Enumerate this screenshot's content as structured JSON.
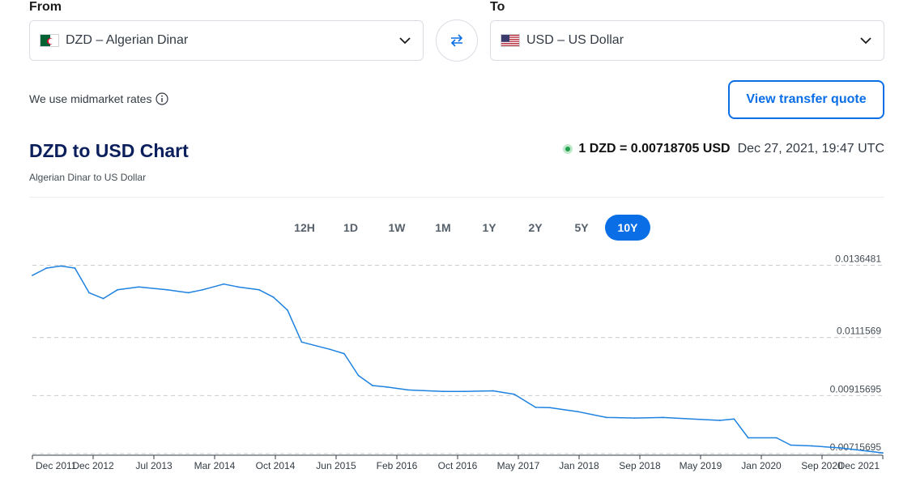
{
  "from": {
    "label": "From",
    "value": "DZD – Algerian Dinar",
    "flag_icon": "algeria-flag-icon"
  },
  "to": {
    "label": "To",
    "value": "USD – US Dollar",
    "flag_icon": "us-flag-icon"
  },
  "swap_icon": "swap-arrows-icon",
  "midmarket_text": "We use midmarket rates",
  "quote_button": "View transfer quote",
  "chart_header": {
    "title": "DZD to USD Chart",
    "subtitle": "Algerian Dinar to US Dollar",
    "rate": "1 DZD = 0.00718705 USD",
    "timestamp": "Dec 27, 2021, 19:47 UTC"
  },
  "ranges": [
    "12H",
    "1D",
    "1W",
    "1M",
    "1Y",
    "2Y",
    "5Y",
    "10Y"
  ],
  "active_range": "10Y",
  "colors": {
    "accent": "#0a6ee6",
    "line": "#1e82e0",
    "title": "#0b1f5c",
    "live": "#21a04b"
  },
  "chart_data": {
    "type": "line",
    "title": "",
    "xlabel": "",
    "ylabel": "",
    "x_ticks": [
      "Dec 2011",
      "Dec 2012",
      "Jul 2013",
      "Mar 2014",
      "Oct 2014",
      "Jun 2015",
      "Feb 2016",
      "Oct 2016",
      "May 2017",
      "Jan 2018",
      "Sep 2018",
      "May 2019",
      "Jan 2020",
      "Sep 2020",
      "Dec 2021"
    ],
    "y_ticks": [
      "0.0136481",
      "0.0111569",
      "0.00915695",
      "0.00715695"
    ],
    "ylim": [
      0.0071,
      0.0138
    ],
    "grid": true,
    "series": [
      {
        "x": [
          "Dec 2011",
          "Feb 2012",
          "Apr 2012",
          "Jun 2012",
          "Aug 2012",
          "Oct 2012",
          "Dec 2012",
          "Mar 2013",
          "Jul 2013",
          "Oct 2013",
          "Dec 2013",
          "Mar 2014",
          "May 2014",
          "Aug 2014",
          "Oct 2014",
          "Dec 2014",
          "Feb 2015",
          "Jun 2015",
          "Aug 2015",
          "Oct 2015",
          "Dec 2015",
          "Feb 2016",
          "May 2016",
          "Oct 2016",
          "Jan 2017",
          "May 2017",
          "Aug 2017",
          "Nov 2017",
          "Jan 2018",
          "May 2018",
          "Sep 2018",
          "Jan 2019",
          "May 2019",
          "Sep 2019",
          "Jan 2020",
          "Mar 2020",
          "May 2020",
          "Sep 2020",
          "Nov 2020",
          "Feb 2021",
          "Jun 2021",
          "Dec 2021"
        ],
        "values": [
          0.0133,
          0.01355,
          0.01362,
          0.01355,
          0.0127,
          0.0125,
          0.0128,
          0.0129,
          0.0128,
          0.0127,
          0.0128,
          0.013,
          0.0129,
          0.0128,
          0.01255,
          0.0121,
          0.011,
          0.01075,
          0.0106,
          0.00985,
          0.0095,
          0.00945,
          0.00935,
          0.0093,
          0.0093,
          0.00932,
          0.0092,
          0.00875,
          0.00874,
          0.0086,
          0.0084,
          0.00838,
          0.0084,
          0.00835,
          0.0083,
          0.00835,
          0.0077,
          0.0077,
          0.00745,
          0.00742,
          0.00735,
          0.00718
        ]
      }
    ]
  }
}
